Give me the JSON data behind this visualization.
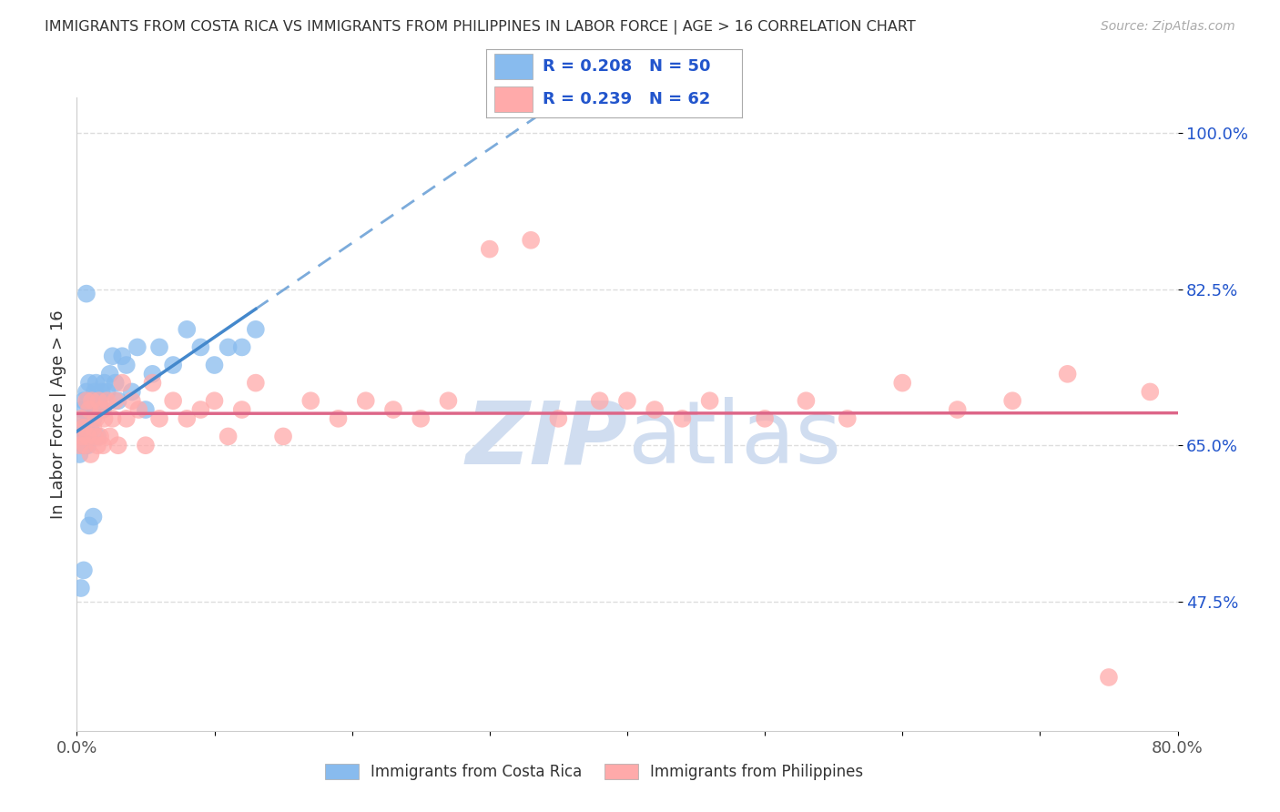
{
  "title": "IMMIGRANTS FROM COSTA RICA VS IMMIGRANTS FROM PHILIPPINES IN LABOR FORCE | AGE > 16 CORRELATION CHART",
  "source": "Source: ZipAtlas.com",
  "ylabel": "In Labor Force | Age > 16",
  "xlim": [
    0.0,
    0.8
  ],
  "ylim": [
    0.33,
    1.04
  ],
  "yticks": [
    0.475,
    0.65,
    0.825,
    1.0
  ],
  "ytick_labels": [
    "47.5%",
    "65.0%",
    "82.5%",
    "100.0%"
  ],
  "xticks": [
    0.0,
    0.1,
    0.2,
    0.3,
    0.4,
    0.5,
    0.6,
    0.7,
    0.8
  ],
  "xtick_labels": [
    "0.0%",
    "",
    "",
    "",
    "",
    "",
    "",
    "",
    "80.0%"
  ],
  "costa_rica_R": 0.208,
  "costa_rica_N": 50,
  "philippines_R": 0.239,
  "philippines_N": 62,
  "blue_scatter_color": "#88bbee",
  "pink_scatter_color": "#ffaaaa",
  "blue_line_color": "#4488cc",
  "pink_line_color": "#dd6688",
  "legend_text_color": "#2255cc",
  "grid_color": "#dddddd",
  "title_color": "#333333",
  "watermark_color": "#d0ddf0",
  "costa_rica_x": [
    0.002,
    0.003,
    0.004,
    0.004,
    0.005,
    0.005,
    0.006,
    0.006,
    0.007,
    0.007,
    0.008,
    0.008,
    0.009,
    0.009,
    0.01,
    0.01,
    0.011,
    0.012,
    0.013,
    0.014,
    0.015,
    0.016,
    0.017,
    0.018,
    0.019,
    0.02,
    0.022,
    0.024,
    0.026,
    0.028,
    0.03,
    0.033,
    0.036,
    0.04,
    0.044,
    0.05,
    0.055,
    0.06,
    0.07,
    0.08,
    0.09,
    0.1,
    0.11,
    0.12,
    0.13,
    0.003,
    0.005,
    0.007,
    0.009,
    0.012
  ],
  "costa_rica_y": [
    0.64,
    0.66,
    0.67,
    0.69,
    0.65,
    0.7,
    0.65,
    0.68,
    0.66,
    0.71,
    0.65,
    0.7,
    0.66,
    0.72,
    0.67,
    0.69,
    0.7,
    0.68,
    0.71,
    0.72,
    0.66,
    0.7,
    0.69,
    0.71,
    0.69,
    0.72,
    0.71,
    0.73,
    0.75,
    0.72,
    0.7,
    0.75,
    0.74,
    0.71,
    0.76,
    0.69,
    0.73,
    0.76,
    0.74,
    0.78,
    0.76,
    0.74,
    0.76,
    0.76,
    0.78,
    0.49,
    0.51,
    0.82,
    0.56,
    0.57
  ],
  "philippines_x": [
    0.002,
    0.003,
    0.004,
    0.005,
    0.006,
    0.007,
    0.008,
    0.009,
    0.01,
    0.011,
    0.012,
    0.013,
    0.014,
    0.015,
    0.016,
    0.017,
    0.018,
    0.019,
    0.02,
    0.022,
    0.024,
    0.026,
    0.028,
    0.03,
    0.033,
    0.036,
    0.04,
    0.045,
    0.05,
    0.055,
    0.06,
    0.07,
    0.08,
    0.09,
    0.1,
    0.11,
    0.12,
    0.13,
    0.15,
    0.17,
    0.19,
    0.21,
    0.23,
    0.25,
    0.27,
    0.3,
    0.33,
    0.35,
    0.38,
    0.4,
    0.42,
    0.44,
    0.46,
    0.5,
    0.53,
    0.56,
    0.6,
    0.64,
    0.68,
    0.72,
    0.75,
    0.78
  ],
  "philippines_y": [
    0.65,
    0.68,
    0.66,
    0.67,
    0.65,
    0.7,
    0.66,
    0.69,
    0.64,
    0.7,
    0.67,
    0.66,
    0.68,
    0.65,
    0.7,
    0.66,
    0.69,
    0.65,
    0.68,
    0.7,
    0.66,
    0.68,
    0.7,
    0.65,
    0.72,
    0.68,
    0.7,
    0.69,
    0.65,
    0.72,
    0.68,
    0.7,
    0.68,
    0.69,
    0.7,
    0.66,
    0.69,
    0.72,
    0.66,
    0.7,
    0.68,
    0.7,
    0.69,
    0.68,
    0.7,
    0.87,
    0.88,
    0.68,
    0.7,
    0.7,
    0.69,
    0.68,
    0.7,
    0.68,
    0.7,
    0.68,
    0.72,
    0.69,
    0.7,
    0.73,
    0.39,
    0.71
  ]
}
